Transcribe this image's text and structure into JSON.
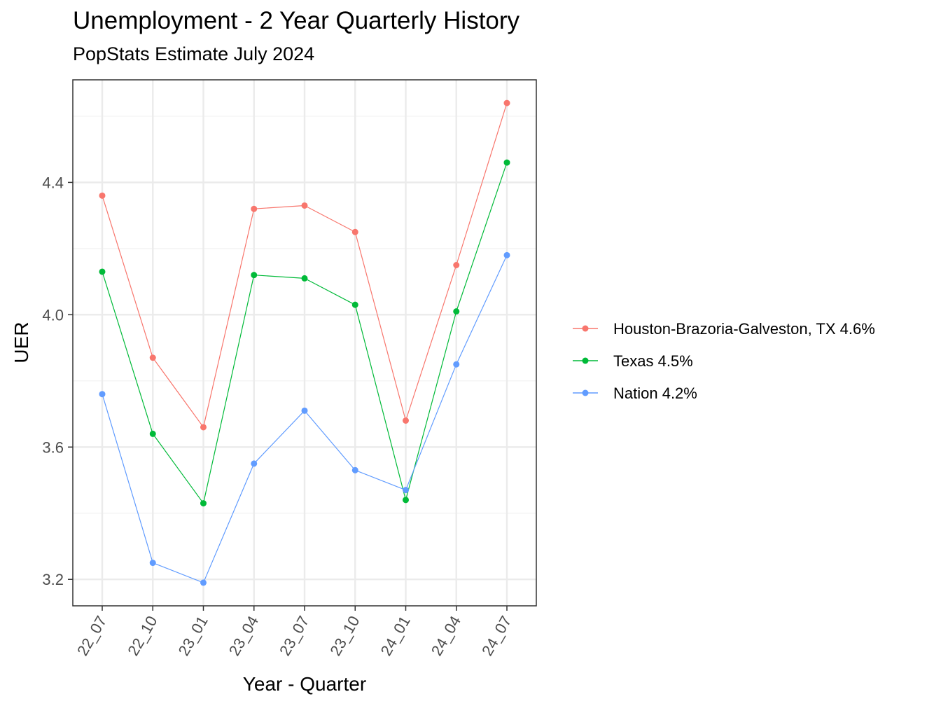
{
  "chart_data": {
    "type": "line",
    "title": "Unemployment - 2 Year Quarterly History",
    "subtitle": "PopStats Estimate July 2024",
    "xlabel": "Year - Quarter",
    "ylabel": "UER",
    "categories": [
      "22_07",
      "22_10",
      "23_01",
      "23_04",
      "23_07",
      "23_10",
      "24_01",
      "24_04",
      "24_07"
    ],
    "ylim": [
      3.12,
      4.71
    ],
    "yticks": [
      3.2,
      3.6,
      4.0,
      4.4
    ],
    "ytick_labels": [
      "3.2",
      "3.6",
      "4.0",
      "4.4"
    ],
    "grid": true,
    "legend_position": "right",
    "series": [
      {
        "name": "Houston-Brazoria-Galveston, TX 4.6%",
        "color": "#F8766D",
        "values": [
          4.36,
          3.87,
          3.66,
          4.32,
          4.33,
          4.25,
          3.68,
          4.15,
          4.64
        ]
      },
      {
        "name": "Texas 4.5%",
        "color": "#00BA38",
        "values": [
          4.13,
          3.64,
          3.43,
          4.12,
          4.11,
          4.03,
          3.44,
          4.01,
          4.46
        ]
      },
      {
        "name": "Nation 4.2%",
        "color": "#619CFF",
        "values": [
          3.76,
          3.25,
          3.19,
          3.55,
          3.71,
          3.53,
          3.47,
          3.85,
          4.18
        ]
      }
    ]
  }
}
